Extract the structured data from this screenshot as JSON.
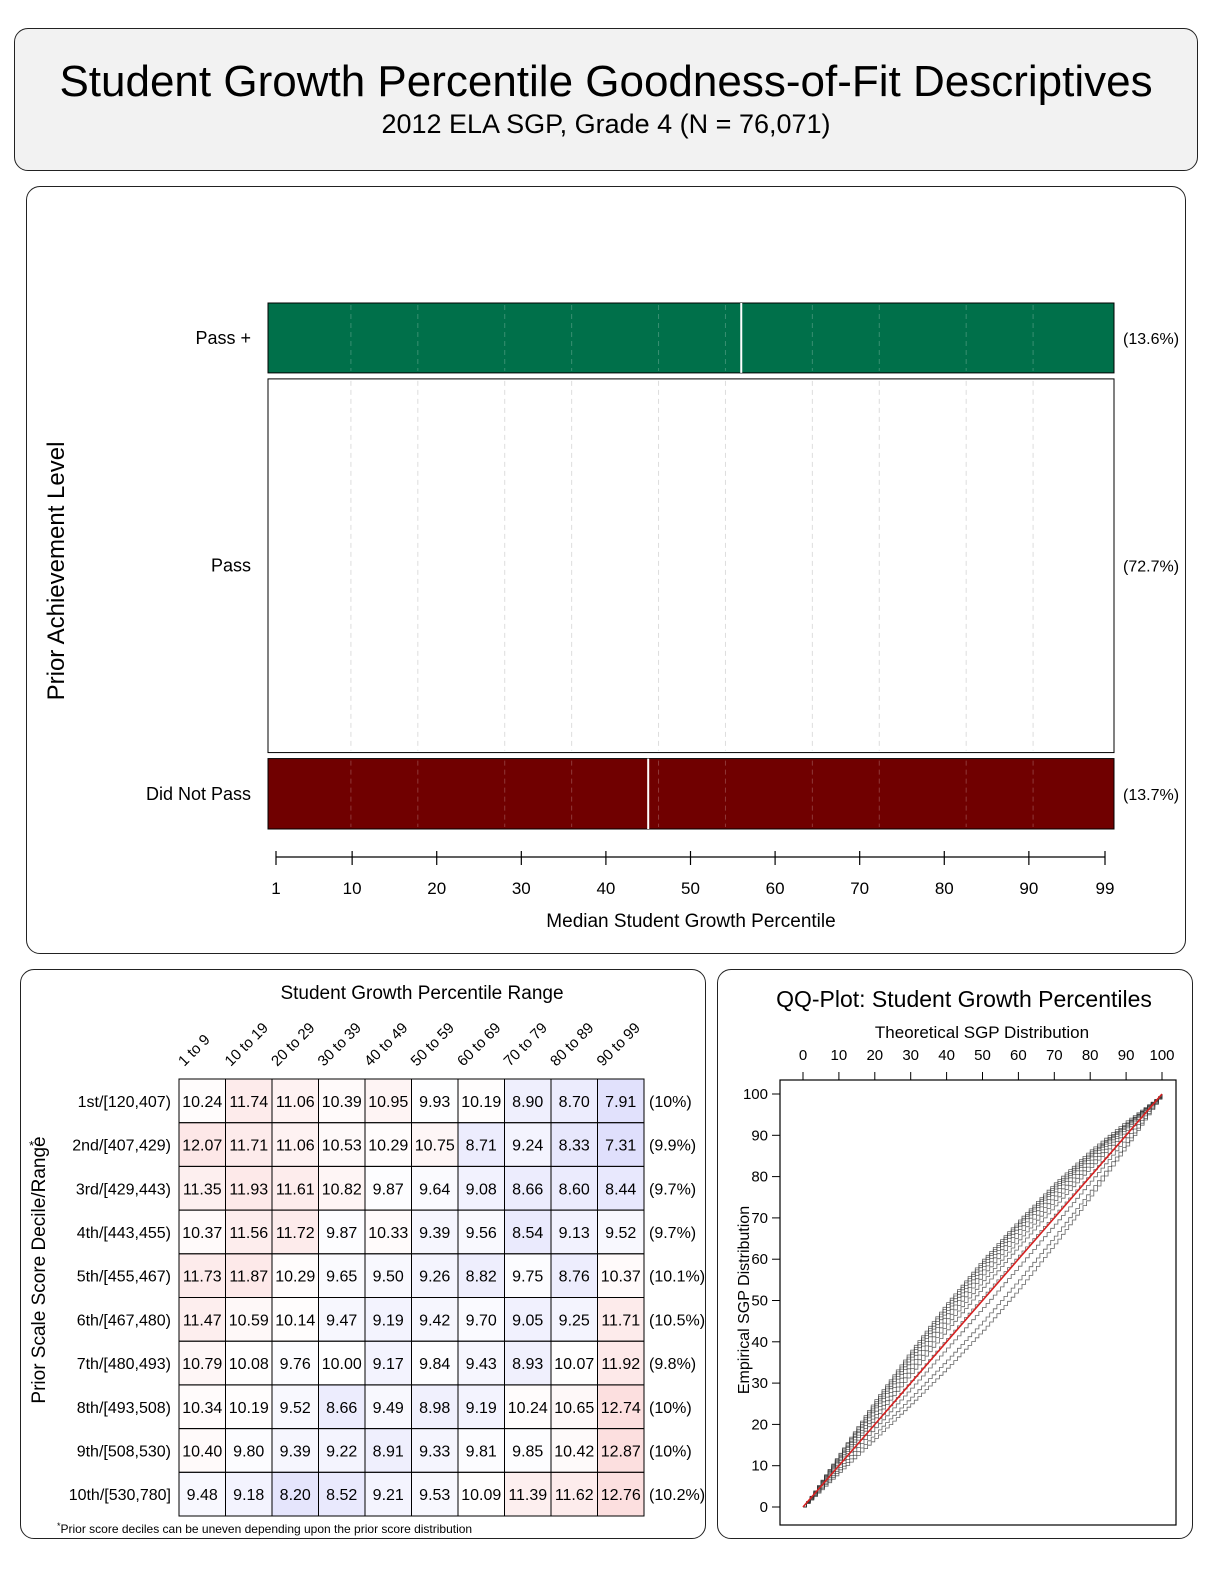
{
  "header": {
    "title": "Student Growth Percentile Goodness-of-Fit Descriptives",
    "subtitle": "2012 ELA SGP, Grade 4 (N = 76,071)"
  },
  "colors": {
    "pass_plus": "#00704A",
    "pass": "#FFFFFF",
    "did_not_pass": "#700000",
    "qq_line": "#d62020",
    "qq_steps": "#333333"
  },
  "chart_data": [
    {
      "type": "bar",
      "name": "achievement-level-median-sgp",
      "ylabel": "Prior Achievement Level",
      "xlabel": "Median Student Growth Percentile",
      "xlim": [
        1,
        99
      ],
      "xticks": [
        1,
        10,
        20,
        30,
        40,
        50,
        60,
        70,
        80,
        90,
        99
      ],
      "categories": [
        "Pass +",
        "Pass",
        "Did Not Pass"
      ],
      "percent_labels": [
        "(13.6%)",
        "(72.7%)",
        "(13.7%)"
      ],
      "proportions": [
        0.136,
        0.727,
        0.137
      ],
      "median_sgp": [
        56,
        null,
        45
      ]
    },
    {
      "type": "heatmap",
      "name": "sgp-range-by-prior-decile",
      "title": "Student Growth Percentile Range",
      "ylabel": "Prior Scale Score Decile/Range",
      "marker": "*",
      "footnote_mark": "*",
      "footnote": "Prior score deciles can be uneven depending upon the prior score distribution",
      "columns": [
        "1 to 9",
        "10 to 19",
        "20 to 29",
        "30 to 39",
        "40 to 49",
        "50 to 59",
        "60 to 69",
        "70 to 79",
        "80 to 89",
        "90 to 99"
      ],
      "rows": [
        "1st/[120,407)",
        "2nd/[407,429)",
        "3rd/[429,443)",
        "4th/[443,455)",
        "5th/[455,467)",
        "6th/[467,480)",
        "7th/[480,493)",
        "8th/[493,508)",
        "9th/[508,530)",
        "10th/[530,780]"
      ],
      "row_percents": [
        "(10%)",
        "(9.9%)",
        "(9.7%)",
        "(9.7%)",
        "(10.1%)",
        "(10.5%)",
        "(9.8%)",
        "(10%)",
        "(10%)",
        "(10.2%)"
      ],
      "values": [
        [
          "10.24",
          "11.74",
          "11.06",
          "10.39",
          "10.95",
          "9.93",
          "10.19",
          "8.90",
          "8.70",
          "7.91"
        ],
        [
          "12.07",
          "11.71",
          "11.06",
          "10.53",
          "10.29",
          "10.75",
          "8.71",
          "9.24",
          "8.33",
          "7.31"
        ],
        [
          "11.35",
          "11.93",
          "11.61",
          "10.82",
          "9.87",
          "9.64",
          "9.08",
          "8.66",
          "8.60",
          "8.44"
        ],
        [
          "10.37",
          "11.56",
          "11.72",
          "9.87",
          "10.33",
          "9.39",
          "9.56",
          "8.54",
          "9.13",
          "9.52"
        ],
        [
          "11.73",
          "11.87",
          "10.29",
          "9.65",
          "9.50",
          "9.26",
          "8.82",
          "9.75",
          "8.76",
          "10.37"
        ],
        [
          "11.47",
          "10.59",
          "10.14",
          "9.47",
          "9.19",
          "9.42",
          "9.70",
          "9.05",
          "9.25",
          "11.71"
        ],
        [
          "10.79",
          "10.08",
          "9.76",
          "10.00",
          "9.17",
          "9.84",
          "9.43",
          "8.93",
          "10.07",
          "11.92"
        ],
        [
          "10.34",
          "10.19",
          "9.52",
          "8.66",
          "9.49",
          "8.98",
          "9.19",
          "10.24",
          "10.65",
          "12.74"
        ],
        [
          "10.40",
          "9.80",
          "9.39",
          "9.22",
          "8.91",
          "9.33",
          "9.81",
          "9.85",
          "10.42",
          "12.87"
        ],
        [
          "9.48",
          "9.18",
          "8.20",
          "8.52",
          "9.21",
          "9.53",
          "10.09",
          "11.39",
          "11.62",
          "12.76"
        ]
      ]
    },
    {
      "type": "line",
      "name": "qq-plot",
      "title": "QQ-Plot: Student Growth Percentiles",
      "xlabel": "Theoretical SGP Distribution",
      "ylabel": "Empirical SGP Distribution",
      "xlim": [
        0,
        100
      ],
      "ylim": [
        0,
        100
      ],
      "xticks": [
        0,
        10,
        20,
        30,
        40,
        50,
        60,
        70,
        80,
        90,
        100
      ],
      "yticks": [
        0,
        10,
        20,
        30,
        40,
        50,
        60,
        70,
        80,
        90,
        100
      ],
      "reference_line": [
        [
          0,
          0
        ],
        [
          100,
          100
        ]
      ],
      "series_deviation_at_x": [
        0,
        10,
        20,
        30,
        40,
        50,
        60,
        70,
        80,
        90,
        100
      ],
      "series_deviation": [
        [
          0,
          3,
          6,
          8,
          9.5,
          10,
          9.5,
          8.5,
          6.5,
          3.5,
          0
        ],
        [
          0,
          2.8,
          5.5,
          7.5,
          9,
          9.5,
          9,
          8,
          6,
          3,
          0
        ],
        [
          0,
          2.5,
          5,
          7,
          8.3,
          9,
          8.6,
          7.5,
          5.6,
          3,
          0
        ],
        [
          0,
          2.2,
          4.5,
          6.3,
          7.6,
          8.2,
          8,
          7,
          5.2,
          2.8,
          0
        ],
        [
          0,
          2,
          4,
          5.6,
          6.8,
          7.4,
          7.2,
          6.3,
          4.8,
          2.5,
          0
        ],
        [
          0,
          1.6,
          3.2,
          4.6,
          5.6,
          6.2,
          6,
          5.3,
          4,
          2.2,
          0
        ],
        [
          0,
          1.2,
          2.4,
          3.5,
          4.3,
          4.8,
          4.7,
          4.2,
          3.2,
          1.8,
          0
        ],
        [
          0,
          0.8,
          1.6,
          2.3,
          2.9,
          3.2,
          3.2,
          2.9,
          2.2,
          1.2,
          0
        ],
        [
          0,
          0.2,
          0.4,
          0.6,
          0.8,
          1,
          1,
          0.9,
          0.7,
          0.4,
          0
        ],
        [
          0,
          -0.4,
          -0.8,
          -1.2,
          -1.5,
          -1.7,
          -1.7,
          -1.5,
          -1.1,
          -0.6,
          0
        ],
        [
          0,
          -1,
          -2.2,
          -3.4,
          -4.4,
          -5,
          -5,
          -4.4,
          -3.3,
          -1.8,
          0
        ],
        [
          0,
          -1.6,
          -3.4,
          -5,
          -6.4,
          -7.2,
          -7.2,
          -6.3,
          -4.7,
          -2.6,
          0
        ]
      ]
    }
  ]
}
